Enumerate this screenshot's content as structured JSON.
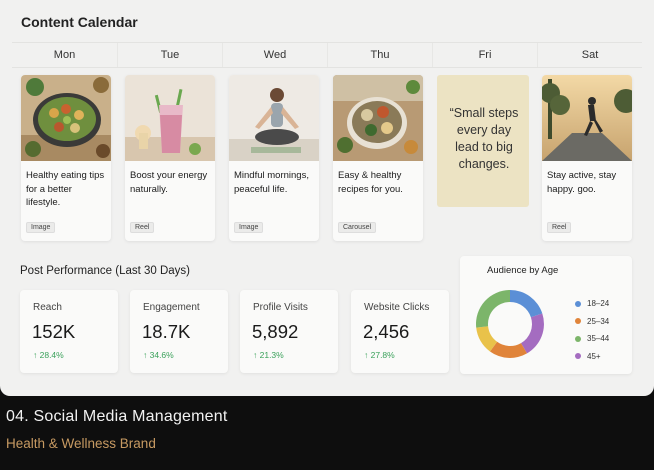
{
  "calendar": {
    "title": "Content Calendar",
    "days": [
      "Mon",
      "Tue",
      "Wed",
      "Thu",
      "Fri",
      "Sat"
    ],
    "posts": [
      {
        "caption": "Healthy eating tips for a better lifestyle.",
        "type": "Image",
        "image": "salad-bowl"
      },
      {
        "caption": "Boost your energy naturally.",
        "type": "Reel",
        "image": "smoothie-glass"
      },
      {
        "caption": "Mindful mornings, peaceful life.",
        "type": "Image",
        "image": "yoga-meditation"
      },
      {
        "caption": "Easy & healthy recipes for you.",
        "type": "Carousel",
        "image": "healthy-meal-bowl"
      },
      {
        "caption": "“Small steps every day lead to big changes.",
        "type": "Quote",
        "image": "quote-card"
      },
      {
        "caption": "Stay active, stay happy. goo.",
        "type": "Reel",
        "image": "runner-road"
      }
    ]
  },
  "performance": {
    "title": "Post Performance (Last 30 Days)",
    "metrics": [
      {
        "label": "Reach",
        "value": "152K",
        "change": "↑ 28.4%"
      },
      {
        "label": "Engagement",
        "value": "18.7K",
        "change": "↑ 34.6%"
      },
      {
        "label": "Profile Visits",
        "value": "5,892",
        "change": "↑ 21.3%"
      },
      {
        "label": "Website Clicks",
        "value": "2,456",
        "change": "↑ 27.8%"
      }
    ]
  },
  "audience": {
    "title": "Audience by Age",
    "segments": [
      {
        "label": "18–24",
        "color": "#5b8fd6"
      },
      {
        "label": "25–34",
        "color": "#e0843a"
      },
      {
        "label": "35–44",
        "color": "#7cb56a"
      },
      {
        "label": "45+",
        "color": "#a46cc0"
      }
    ]
  },
  "footer": {
    "title": "04. Social Media Management",
    "subtitle": "Health & Wellness Brand"
  }
}
